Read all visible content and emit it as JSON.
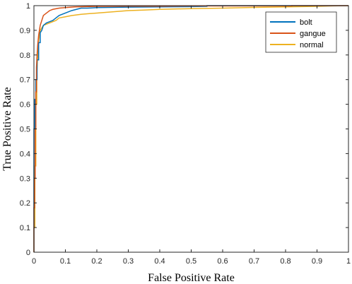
{
  "chart_data": {
    "type": "line",
    "xlabel": "False Positive Rate",
    "ylabel": "True Positive Rate",
    "xlim": [
      0,
      1
    ],
    "ylim": [
      0,
      1
    ],
    "xticks": [
      "0",
      "0.1",
      "0.2",
      "0.3",
      "0.4",
      "0.5",
      "0.6",
      "0.7",
      "0.8",
      "0.9",
      "1"
    ],
    "yticks": [
      "0",
      "0.1",
      "0.2",
      "0.3",
      "0.4",
      "0.5",
      "0.6",
      "0.7",
      "0.8",
      "0.9",
      "1"
    ],
    "grid": false,
    "legend_position": "top-right",
    "series": [
      {
        "name": "bolt",
        "color": "#0072BD",
        "x": [
          0,
          0,
          0.003,
          0.003,
          0.006,
          0.006,
          0.01,
          0.01,
          0.015,
          0.015,
          0.02,
          0.02,
          0.025,
          0.03,
          0.04,
          0.05,
          0.06,
          0.07,
          0.08,
          0.1,
          0.12,
          0.15,
          0.17,
          0.2,
          0.3,
          0.4,
          0.5,
          0.55,
          0.55,
          1
        ],
        "y": [
          0,
          0.5,
          0.5,
          0.62,
          0.62,
          0.7,
          0.7,
          0.78,
          0.78,
          0.85,
          0.85,
          0.89,
          0.9,
          0.92,
          0.93,
          0.935,
          0.94,
          0.95,
          0.96,
          0.97,
          0.98,
          0.99,
          0.99,
          0.992,
          0.994,
          0.995,
          0.996,
          0.997,
          1,
          1
        ]
      },
      {
        "name": "gangue",
        "color": "#D95319",
        "x": [
          0,
          0,
          0.002,
          0.002,
          0.004,
          0.004,
          0.006,
          0.006,
          0.008,
          0.008,
          0.01,
          0.012,
          0.015,
          0.02,
          0.025,
          0.03,
          0.04,
          0.05,
          0.06,
          0.08,
          0.1,
          0.13,
          0.16,
          0.2,
          0.3,
          0.4,
          0.5,
          0.6,
          0.7,
          0.82,
          0.82,
          1
        ],
        "y": [
          0,
          0.18,
          0.18,
          0.3,
          0.3,
          0.5,
          0.5,
          0.65,
          0.65,
          0.75,
          0.8,
          0.84,
          0.88,
          0.92,
          0.94,
          0.96,
          0.97,
          0.98,
          0.985,
          0.99,
          0.992,
          0.995,
          0.996,
          0.997,
          0.998,
          0.998,
          0.999,
          0.999,
          0.999,
          0.999,
          1,
          1
        ]
      },
      {
        "name": "normal",
        "color": "#EDB120",
        "x": [
          0,
          0,
          0.003,
          0.003,
          0.006,
          0.006,
          0.009,
          0.009,
          0.012,
          0.015,
          0.02,
          0.025,
          0.03,
          0.04,
          0.05,
          0.06,
          0.07,
          0.08,
          0.1,
          0.12,
          0.15,
          0.2,
          0.25,
          0.3,
          0.35,
          0.4,
          0.5,
          0.6,
          0.7,
          0.8,
          0.9,
          0.95,
          1
        ],
        "y": [
          0,
          0.1,
          0.1,
          0.35,
          0.35,
          0.6,
          0.6,
          0.72,
          0.8,
          0.86,
          0.9,
          0.91,
          0.92,
          0.925,
          0.93,
          0.935,
          0.94,
          0.95,
          0.955,
          0.96,
          0.965,
          0.97,
          0.975,
          0.98,
          0.982,
          0.985,
          0.988,
          0.99,
          0.993,
          0.995,
          0.997,
          0.999,
          1
        ]
      }
    ]
  }
}
